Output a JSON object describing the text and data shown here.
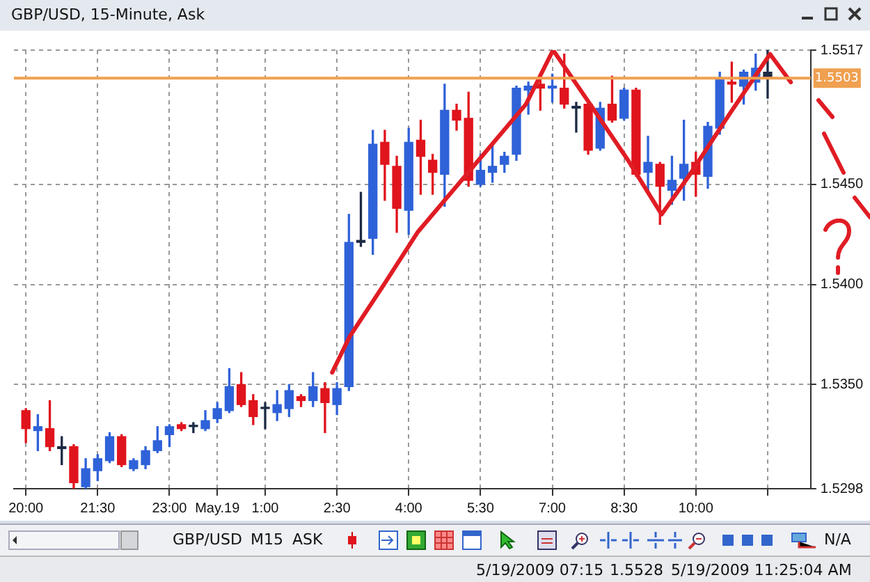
{
  "chart_data": {
    "type": "candlestick",
    "title": "GBP/USD, 15-Minute, Ask",
    "x": [
      "2009-05-18T20:00",
      "2009-05-18T20:15",
      "2009-05-18T20:30",
      "2009-05-18T20:45",
      "2009-05-18T21:00",
      "2009-05-18T21:15",
      "2009-05-18T21:30",
      "2009-05-18T21:45",
      "2009-05-18T22:00",
      "2009-05-18T22:15",
      "2009-05-18T22:30",
      "2009-05-18T22:45",
      "2009-05-18T23:00",
      "2009-05-18T23:15",
      "2009-05-18T23:30",
      "2009-05-18T23:45",
      "2009-05-19T00:00",
      "2009-05-19T00:15",
      "2009-05-19T00:30",
      "2009-05-19T00:45",
      "2009-05-19T01:00",
      "2009-05-19T01:15",
      "2009-05-19T01:30",
      "2009-05-19T01:45",
      "2009-05-19T02:00",
      "2009-05-19T02:15",
      "2009-05-19T02:30",
      "2009-05-19T02:45",
      "2009-05-19T03:00",
      "2009-05-19T03:15",
      "2009-05-19T03:30",
      "2009-05-19T03:45",
      "2009-05-19T04:00",
      "2009-05-19T04:15",
      "2009-05-19T04:30",
      "2009-05-19T04:45",
      "2009-05-19T05:00",
      "2009-05-19T05:15",
      "2009-05-19T05:30",
      "2009-05-19T05:45",
      "2009-05-19T06:00",
      "2009-05-19T06:15",
      "2009-05-19T06:30",
      "2009-05-19T06:45",
      "2009-05-19T07:00",
      "2009-05-19T07:15",
      "2009-05-19T07:30",
      "2009-05-19T07:45",
      "2009-05-19T08:00",
      "2009-05-19T08:15",
      "2009-05-19T08:30",
      "2009-05-19T08:45",
      "2009-05-19T09:00",
      "2009-05-19T09:15",
      "2009-05-19T09:30",
      "2009-05-19T09:45",
      "2009-05-19T10:00",
      "2009-05-19T10:15",
      "2009-05-19T10:30",
      "2009-05-19T10:45",
      "2009-05-19T11:00",
      "2009-05-19T11:15",
      "2009-05-19T11:30"
    ],
    "ohlc": [
      [
        1.5337,
        1.5338,
        1.5321,
        1.5328
      ],
      [
        1.5327,
        1.5335,
        1.5317,
        1.5329
      ],
      [
        1.5328,
        1.5342,
        1.5317,
        1.5319
      ],
      [
        1.5318,
        1.5324,
        1.531,
        1.5319
      ],
      [
        1.5319,
        1.532,
        1.5298,
        1.5301
      ],
      [
        1.5299,
        1.5313,
        1.5298,
        1.5308
      ],
      [
        1.5307,
        1.5315,
        1.5302,
        1.5313
      ],
      [
        1.5312,
        1.5326,
        1.5311,
        1.5324
      ],
      [
        1.5324,
        1.5325,
        1.5309,
        1.531
      ],
      [
        1.5308,
        1.5313,
        1.5307,
        1.5312
      ],
      [
        1.531,
        1.5319,
        1.5308,
        1.5317
      ],
      [
        1.5317,
        1.5329,
        1.5316,
        1.5322
      ],
      [
        1.5325,
        1.533,
        1.5319,
        1.5329
      ],
      [
        1.533,
        1.5331,
        1.5327,
        1.5328
      ],
      [
        1.5329,
        1.5331,
        1.5326,
        1.5329
      ],
      [
        1.5328,
        1.5337,
        1.5327,
        1.5332
      ],
      [
        1.5333,
        1.5341,
        1.5331,
        1.5338
      ],
      [
        1.5337,
        1.5358,
        1.5336,
        1.5349
      ],
      [
        1.535,
        1.5356,
        1.5339,
        1.534
      ],
      [
        1.5342,
        1.5345,
        1.533,
        1.5334
      ],
      [
        1.5338,
        1.5341,
        1.5328,
        1.5338
      ],
      [
        1.5336,
        1.5347,
        1.5332,
        1.534
      ],
      [
        1.5338,
        1.535,
        1.5334,
        1.5347
      ],
      [
        1.5344,
        1.5345,
        1.5339,
        1.5342
      ],
      [
        1.5342,
        1.5356,
        1.5339,
        1.5349
      ],
      [
        1.5348,
        1.5351,
        1.5326,
        1.5341
      ],
      [
        1.534,
        1.5351,
        1.5335,
        1.5348
      ],
      [
        1.5349,
        1.5435,
        1.5347,
        1.5421
      ],
      [
        1.5421,
        1.5446,
        1.5419,
        1.5422
      ],
      [
        1.5423,
        1.5477,
        1.5415,
        1.547
      ],
      [
        1.5471,
        1.5477,
        1.5442,
        1.546
      ],
      [
        1.5459,
        1.5464,
        1.5426,
        1.5438
      ],
      [
        1.5437,
        1.5478,
        1.5425,
        1.5471
      ],
      [
        1.5472,
        1.5482,
        1.5445,
        1.5464
      ],
      [
        1.5462,
        1.5465,
        1.5445,
        1.5456
      ],
      [
        1.5455,
        1.55,
        1.5439,
        1.5487
      ],
      [
        1.5487,
        1.549,
        1.5477,
        1.5482
      ],
      [
        1.5483,
        1.5496,
        1.5449,
        1.5452
      ],
      [
        1.545,
        1.5465,
        1.5449,
        1.5457
      ],
      [
        1.5456,
        1.5471,
        1.5451,
        1.5459
      ],
      [
        1.546,
        1.5466,
        1.5456,
        1.5464
      ],
      [
        1.5465,
        1.5499,
        1.5462,
        1.5498
      ],
      [
        1.5497,
        1.5501,
        1.5485,
        1.5499
      ],
      [
        1.55,
        1.5503,
        1.5487,
        1.5498
      ],
      [
        1.5498,
        1.5505,
        1.5491,
        1.5499
      ],
      [
        1.5498,
        1.5515,
        1.5488,
        1.549
      ],
      [
        1.5489,
        1.5491,
        1.5476,
        1.5488
      ],
      [
        1.549,
        1.5491,
        1.5465,
        1.5467
      ],
      [
        1.5468,
        1.5491,
        1.5467,
        1.5488
      ],
      [
        1.549,
        1.5504,
        1.5481,
        1.5482
      ],
      [
        1.5483,
        1.5498,
        1.5482,
        1.5497
      ],
      [
        1.5497,
        1.5498,
        1.5454,
        1.5455
      ],
      [
        1.5456,
        1.5474,
        1.5446,
        1.5461
      ],
      [
        1.546,
        1.5461,
        1.543,
        1.5449
      ],
      [
        1.5447,
        1.5464,
        1.544,
        1.5452
      ],
      [
        1.5453,
        1.5482,
        1.5442,
        1.546
      ],
      [
        1.5461,
        1.5466,
        1.5444,
        1.5455
      ],
      [
        1.5454,
        1.5481,
        1.5448,
        1.5479
      ],
      [
        1.5478,
        1.5506,
        1.5475,
        1.5503
      ],
      [
        1.5501,
        1.5511,
        1.5491,
        1.55
      ],
      [
        1.5499,
        1.5507,
        1.549,
        1.5506
      ],
      [
        1.5501,
        1.5515,
        1.5497,
        1.5508
      ],
      [
        1.5506,
        1.5517,
        1.5493,
        1.5503
      ]
    ],
    "colors": [
      "#e0141c",
      "#2f62d8",
      "#e0141c",
      "#1c2a44",
      "#e0141c",
      "#2f62d8",
      "#2f62d8",
      "#2f62d8",
      "#e0141c",
      "#2f62d8",
      "#2f62d8",
      "#2f62d8",
      "#2f62d8",
      "#e0141c",
      "#1c2a44",
      "#2f62d8",
      "#2f62d8",
      "#2f62d8",
      "#e0141c",
      "#e0141c",
      "#1c2a44",
      "#2f62d8",
      "#2f62d8",
      "#e0141c",
      "#2f62d8",
      "#e0141c",
      "#2f62d8",
      "#2f62d8",
      "#1c2a44",
      "#2f62d8",
      "#e0141c",
      "#e0141c",
      "#2f62d8",
      "#e0141c",
      "#e0141c",
      "#2f62d8",
      "#e0141c",
      "#e0141c",
      "#2f62d8",
      "#2f62d8",
      "#2f62d8",
      "#2f62d8",
      "#2f62d8",
      "#e0141c",
      "#2f62d8",
      "#e0141c",
      "#1c2a44",
      "#e0141c",
      "#2f62d8",
      "#e0141c",
      "#2f62d8",
      "#e0141c",
      "#2f62d8",
      "#e0141c",
      "#2f62d8",
      "#2f62d8",
      "#e0141c",
      "#2f62d8",
      "#2f62d8",
      "#e0141c",
      "#2f62d8",
      "#2f62d8",
      "#1c2a44"
    ],
    "series": [
      {
        "type": "line",
        "color": "#e01c24",
        "x": [
          "2009-05-19T02:24",
          "2009-05-19T02:46",
          "2009-05-19T03:29",
          "2009-05-19T04:11",
          "2009-05-19T05:19",
          "2009-05-19T06:27",
          "2009-05-19T07:01",
          "2009-05-19T07:44",
          "2009-05-19T08:35",
          "2009-05-19T09:17",
          "2009-05-19T09:51",
          "2009-05-19T10:42",
          "2009-05-19T11:33",
          "2009-05-19T11:59"
        ],
        "values": [
          1.5356,
          1.5374,
          1.54,
          1.5426,
          1.5458,
          1.549,
          1.5517,
          1.5492,
          1.5462,
          1.5435,
          1.5454,
          1.5485,
          1.5515,
          1.5501
        ]
      }
    ],
    "xlim": [
      "2009-05-18T19:45",
      "2009-05-19T12:24"
    ],
    "xticks": [
      {
        "value": "2009-05-18T20:00",
        "label": "20:00"
      },
      {
        "value": "2009-05-18T21:30",
        "label": "21:30"
      },
      {
        "value": "2009-05-18T23:00",
        "label": "23:00"
      },
      {
        "value": "2009-05-19T00:00",
        "label": "May.19"
      },
      {
        "value": "2009-05-19T01:00",
        "label": "1:00"
      },
      {
        "value": "2009-05-19T02:30",
        "label": "2:30"
      },
      {
        "value": "2009-05-19T04:00",
        "label": "4:00"
      },
      {
        "value": "2009-05-19T05:30",
        "label": "5:30"
      },
      {
        "value": "2009-05-19T07:00",
        "label": "7:00"
      },
      {
        "value": "2009-05-19T08:30",
        "label": "8:30"
      },
      {
        "value": "2009-05-19T10:00",
        "label": "10:00"
      },
      {
        "value": "2009-05-19T11:30",
        "label": null
      }
    ],
    "ylim": [
      1.5298,
      1.5517
    ],
    "yticks": [
      {
        "value": 1.5298,
        "label": "1.5298"
      },
      {
        "value": 1.535,
        "label": "1.5350"
      },
      {
        "value": 1.54,
        "label": "1.5400"
      },
      {
        "value": 1.545,
        "label": "1.5450"
      },
      {
        "value": 1.5517,
        "label": "1.5517"
      }
    ],
    "ref_lines": [
      {
        "axis": "y",
        "value": 1.5503,
        "label": "1.5503",
        "color": "#f0a050"
      }
    ],
    "grid": true,
    "legend": false,
    "annotations": [
      "GBP/USD",
      "M15",
      "ASK",
      "N/A",
      "5/19/2009 07:15",
      "1.5528",
      "5/19/2009 11:25:04 AM"
    ]
  }
}
